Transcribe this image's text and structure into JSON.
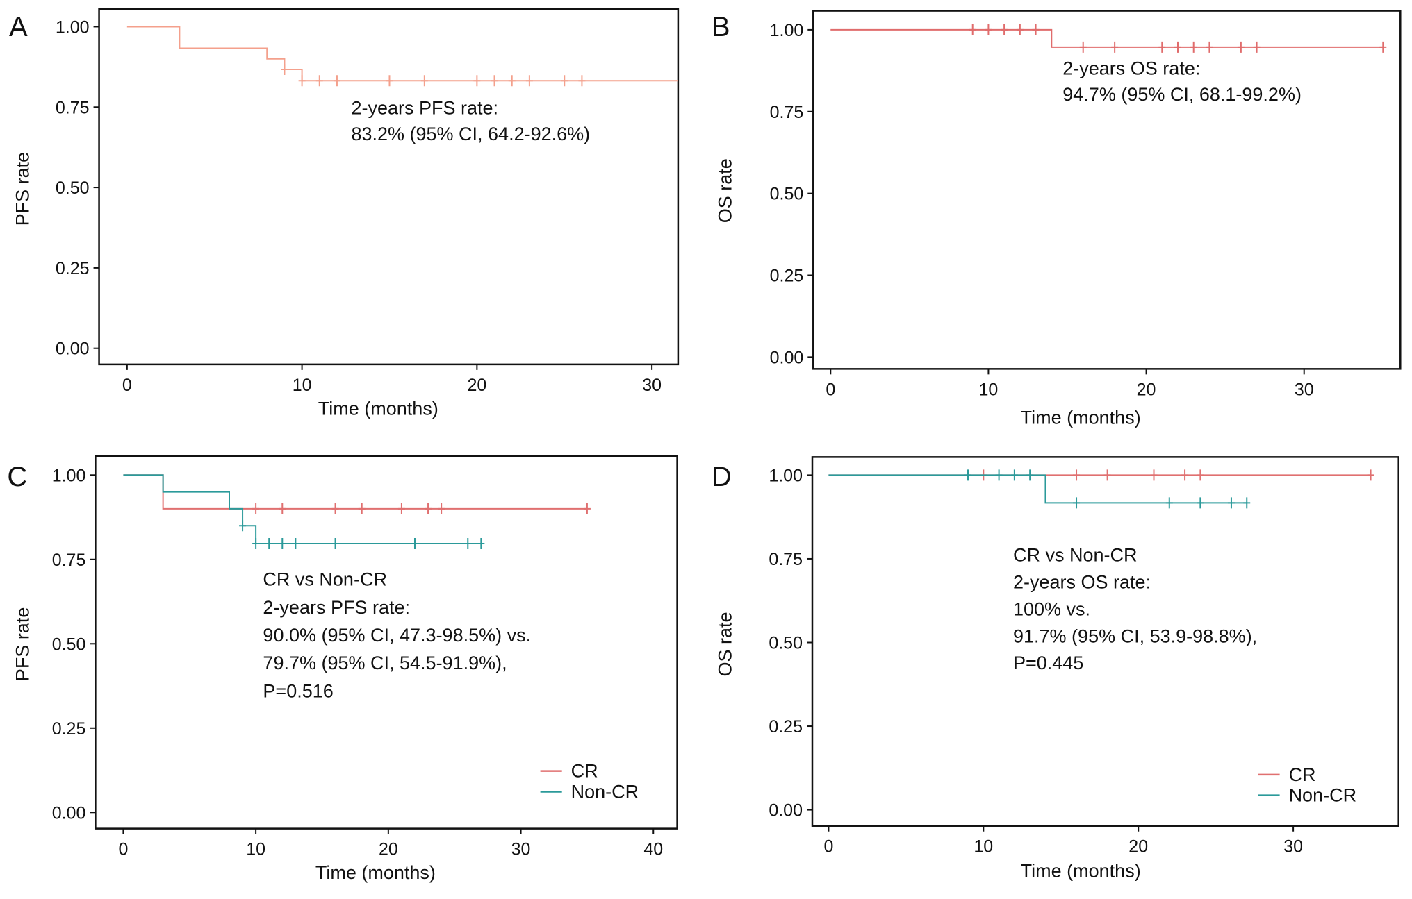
{
  "chart_data": [
    {
      "type": "step",
      "label": "A",
      "ylabel": "PFS rate",
      "xlabel": "Time (months)",
      "xlim": [
        -1.6,
        31.5
      ],
      "ylim": [
        -0.05,
        1.055
      ],
      "xticks": [
        0,
        10,
        20,
        30
      ],
      "yticks": [
        {
          "value": 0,
          "label": "0.00"
        },
        {
          "value": 0.25,
          "label": "0.25"
        },
        {
          "value": 0.5,
          "label": "0.50"
        },
        {
          "value": 0.75,
          "label": "0.75"
        },
        {
          "value": 1,
          "label": "1.00"
        }
      ],
      "annotations": [
        "2-years PFS rate:",
        "83.2% (95% CI, 64.2-92.6%)"
      ],
      "series": [
        {
          "color": "#f4a08c",
          "x": [
            0,
            3,
            8,
            9,
            10,
            31.5
          ],
          "values": [
            1,
            0.933,
            0.9,
            0.867,
            0.832,
            0.832
          ],
          "censor_x": [
            9,
            10,
            11,
            12,
            15,
            17,
            20,
            21,
            22,
            23,
            25,
            26
          ],
          "censor_values": [
            0.867,
            0.832,
            0.832,
            0.832,
            0.832,
            0.832,
            0.832,
            0.832,
            0.832,
            0.832,
            0.832,
            0.832
          ]
        }
      ]
    },
    {
      "type": "step",
      "label": "B",
      "ylabel": "OS rate",
      "xlabel": "Time (months)",
      "xlim": [
        -1.1,
        36.1
      ],
      "ylim": [
        -0.036,
        1.058
      ],
      "xticks": [
        0,
        10,
        20,
        30
      ],
      "yticks": [
        {
          "value": 0,
          "label": "0.00"
        },
        {
          "value": 0.25,
          "label": "0.25"
        },
        {
          "value": 0.5,
          "label": "0.50"
        },
        {
          "value": 0.75,
          "label": "0.75"
        },
        {
          "value": 1,
          "label": "1.00"
        }
      ],
      "annotations": [
        "2-years OS rate:",
        "94.7% (95% CI, 68.1-99.2%)"
      ],
      "series": [
        {
          "color": "#e06c6c",
          "x": [
            0,
            14,
            35
          ],
          "values": [
            1,
            0.947,
            0.947
          ],
          "censor_x": [
            9,
            10,
            11,
            12,
            13,
            16,
            18,
            21,
            22,
            23,
            24,
            26,
            27,
            35
          ],
          "censor_values": [
            1,
            1,
            1,
            1,
            1,
            0.947,
            0.947,
            0.947,
            0.947,
            0.947,
            0.947,
            0.947,
            0.947,
            0.947
          ]
        }
      ]
    },
    {
      "type": "step",
      "label": "C",
      "ylabel": "PFS rate",
      "xlabel": "Time (months)",
      "xlim": [
        -2.1,
        41.8
      ],
      "ylim": [
        -0.048,
        1.056
      ],
      "xticks": [
        0,
        10,
        20,
        30,
        40
      ],
      "yticks": [
        {
          "value": 0,
          "label": "0.00"
        },
        {
          "value": 0.25,
          "label": "0.25"
        },
        {
          "value": 0.5,
          "label": "0.50"
        },
        {
          "value": 0.75,
          "label": "0.75"
        },
        {
          "value": 1,
          "label": "1.00"
        }
      ],
      "annotations": [
        "CR vs Non-CR",
        "2-years PFS rate:",
        "90.0% (95% CI, 47.3-98.5%) vs.",
        "79.7% (95% CI, 54.5-91.9%),",
        "P=0.516"
      ],
      "series": [
        {
          "name": "CR",
          "color": "#e07070",
          "x": [
            0,
            3,
            35
          ],
          "values": [
            1,
            0.9,
            0.9
          ],
          "censor_x": [
            10,
            12,
            16,
            18,
            21,
            23,
            24,
            35
          ],
          "censor_values": [
            0.9,
            0.9,
            0.9,
            0.9,
            0.9,
            0.9,
            0.9,
            0.9
          ]
        },
        {
          "name": "Non-CR",
          "color": "#2b9a9a",
          "x": [
            0,
            3,
            8,
            9,
            10,
            27
          ],
          "values": [
            1,
            0.95,
            0.9,
            0.85,
            0.797,
            0.797
          ],
          "censor_x": [
            9,
            10,
            11,
            12,
            13,
            16,
            22,
            26,
            27
          ],
          "censor_values": [
            0.85,
            0.797,
            0.797,
            0.797,
            0.797,
            0.797,
            0.797,
            0.797,
            0.797
          ]
        }
      ]
    },
    {
      "type": "step",
      "label": "D",
      "ylabel": "OS rate",
      "xlabel": "Time (months)",
      "xlim": [
        -1.05,
        36.8
      ],
      "ylim": [
        -0.048,
        1.054
      ],
      "xticks": [
        0,
        10,
        20,
        30
      ],
      "yticks": [
        {
          "value": 0,
          "label": "0.00"
        },
        {
          "value": 0.25,
          "label": "0.25"
        },
        {
          "value": 0.5,
          "label": "0.50"
        },
        {
          "value": 0.75,
          "label": "0.75"
        },
        {
          "value": 1,
          "label": "1.00"
        }
      ],
      "annotations": [
        "CR vs Non-CR",
        "2-years OS rate:",
        "100% vs.",
        "91.7% (95% CI, 53.9-98.8%),",
        "P=0.445"
      ],
      "series": [
        {
          "name": "CR",
          "color": "#e07070",
          "x": [
            0,
            35
          ],
          "values": [
            1,
            1
          ],
          "censor_x": [
            10,
            16,
            18,
            21,
            23,
            24,
            35
          ],
          "censor_values": [
            1,
            1,
            1,
            1,
            1,
            1,
            1
          ]
        },
        {
          "name": "Non-CR",
          "color": "#2b9a9a",
          "x": [
            0,
            14,
            27
          ],
          "values": [
            1,
            0.917,
            0.917
          ],
          "censor_x": [
            9,
            11,
            12,
            13,
            16,
            22,
            24,
            26,
            27
          ],
          "censor_values": [
            1,
            1,
            1,
            1,
            0.917,
            0.917,
            0.917,
            0.917,
            0.917
          ]
        }
      ]
    }
  ]
}
